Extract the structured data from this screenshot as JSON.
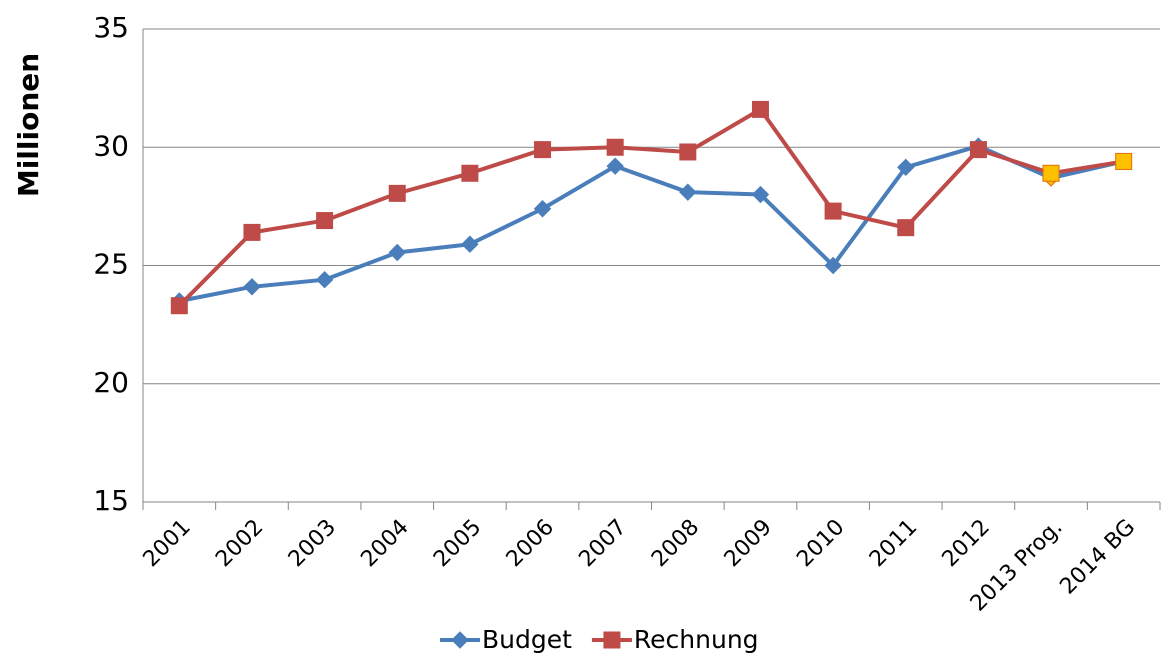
{
  "chart_data": {
    "type": "line",
    "y_label": "Millionen",
    "categories": [
      "2001",
      "2002",
      "2003",
      "2004",
      "2005",
      "2006",
      "2007",
      "2008",
      "2009",
      "2010",
      "2011",
      "2012",
      "2013 Prog.",
      "2014 BG"
    ],
    "series": [
      {
        "name": "Budget",
        "color": "#4a7ebb",
        "marker": "diamond",
        "values": [
          23.5,
          24.1,
          24.4,
          25.55,
          25.9,
          27.4,
          29.2,
          28.1,
          28.0,
          25.0,
          29.15,
          30.05,
          28.7,
          29.4
        ],
        "marker_colors": [
          "#4a7ebb",
          "#4a7ebb",
          "#4a7ebb",
          "#4a7ebb",
          "#4a7ebb",
          "#4a7ebb",
          "#4a7ebb",
          "#4a7ebb",
          "#4a7ebb",
          "#4a7ebb",
          "#4a7ebb",
          "#4a7ebb",
          "#ffc000",
          "#4a7ebb"
        ]
      },
      {
        "name": "Rechnung",
        "color": "#be4b48",
        "marker": "square",
        "values": [
          23.3,
          26.4,
          26.9,
          28.05,
          28.9,
          29.9,
          30.0,
          29.8,
          31.6,
          27.3,
          26.6,
          29.9,
          28.9,
          29.4
        ],
        "marker_colors": [
          "#be4b48",
          "#be4b48",
          "#be4b48",
          "#be4b48",
          "#be4b48",
          "#be4b48",
          "#be4b48",
          "#be4b48",
          "#be4b48",
          "#be4b48",
          "#be4b48",
          "#be4b48",
          "#ffc000",
          "#ffc000"
        ]
      }
    ],
    "ylim": [
      15,
      35
    ],
    "yticks": [
      15,
      20,
      25,
      30,
      35
    ],
    "grid": true,
    "legend": "bottom"
  }
}
